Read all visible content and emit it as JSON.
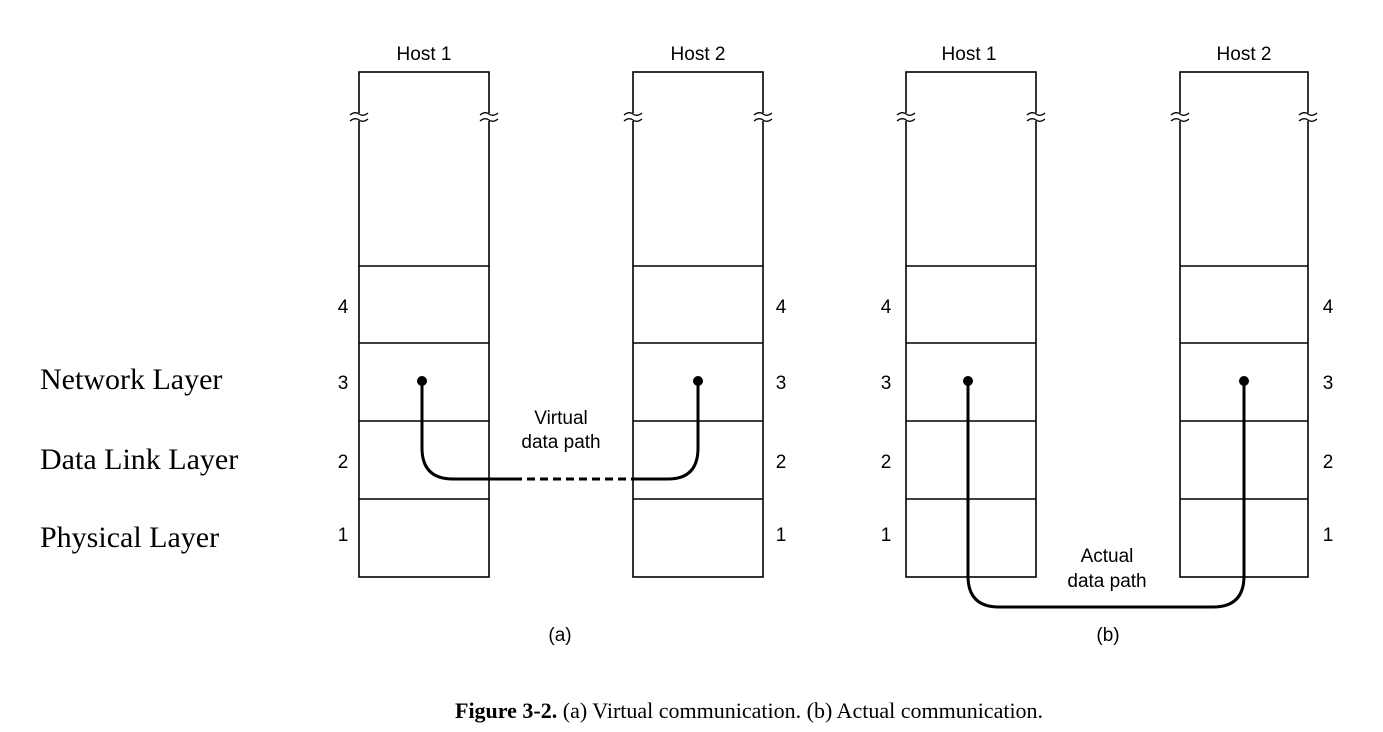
{
  "layer_names": {
    "network": "Network Layer",
    "data_link": "Data Link Layer",
    "physical": "Physical Layer"
  },
  "panels": [
    {
      "id": "a",
      "label": "(a)",
      "host_left": "Host 1",
      "host_right": "Host 2",
      "layer_numbers": [
        "4",
        "3",
        "2",
        "1"
      ],
      "path_label_line1": "Virtual",
      "path_label_line2": "data path"
    },
    {
      "id": "b",
      "label": "(b)",
      "host_left": "Host 1",
      "host_right": "Host 2",
      "layer_numbers": [
        "4",
        "3",
        "2",
        "1"
      ],
      "path_label_line1": "Actual",
      "path_label_line2": "data path"
    }
  ],
  "caption": {
    "bold": "Figure 3-2.",
    "text": " (a) Virtual communication. (b) Actual communication."
  }
}
